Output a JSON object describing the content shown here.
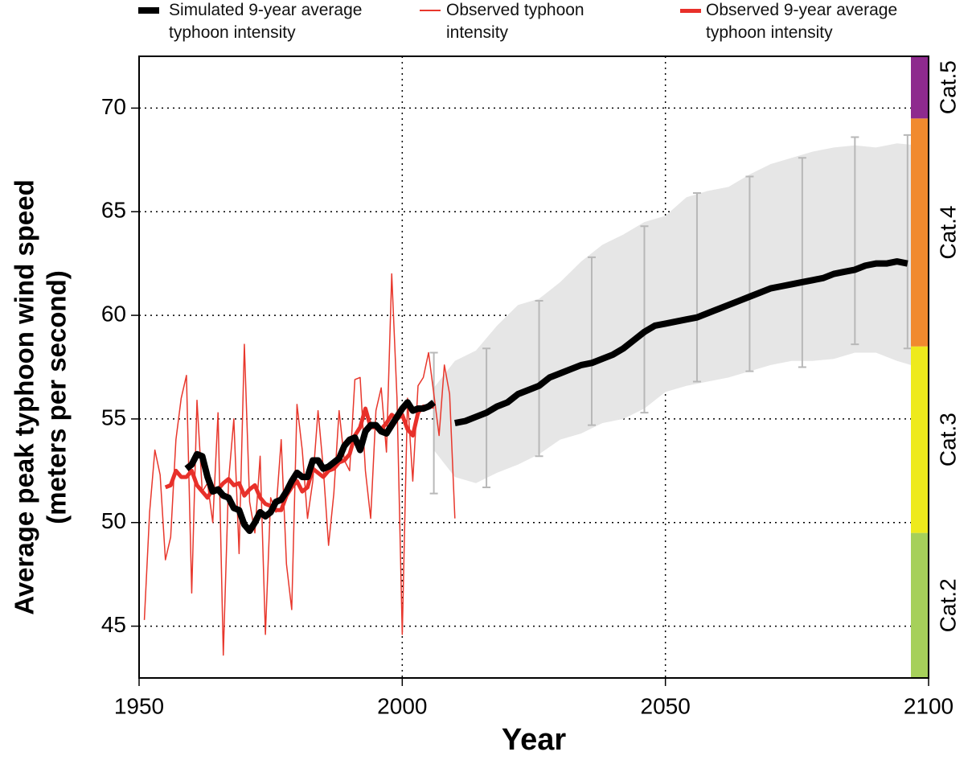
{
  "chart_data": {
    "type": "line",
    "x_label": "Year",
    "y_label": [
      "Average peak  typhoon wind speed",
      "(meters per second)"
    ],
    "xlim": [
      1950,
      2100
    ],
    "xticks": [
      1950,
      2000,
      2050,
      2100
    ],
    "ylim": [
      42.5,
      72.5
    ],
    "yticks": [
      45,
      50,
      55,
      60,
      65,
      70
    ],
    "grid": true,
    "legend": "top",
    "series": [
      {
        "name": "Simulated 9-year average typhoon intensity",
        "color": "#000000",
        "width": 8,
        "x": [
          1959,
          1960,
          1961,
          1962,
          1963,
          1964,
          1965,
          1966,
          1967,
          1968,
          1969,
          1970,
          1971,
          1972,
          1973,
          1974,
          1975,
          1976,
          1977,
          1978,
          1979,
          1980,
          1981,
          1982,
          1983,
          1984,
          1985,
          1986,
          1987,
          1988,
          1989,
          1990,
          1991,
          1992,
          1993,
          1994,
          1995,
          1996,
          1997,
          1998,
          1999,
          2000,
          2001,
          2002,
          2003,
          2004,
          2005,
          2006,
          2008,
          2010,
          2012,
          2014,
          2016,
          2018,
          2020,
          2022,
          2024,
          2026,
          2028,
          2030,
          2032,
          2034,
          2036,
          2038,
          2040,
          2042,
          2044,
          2046,
          2048,
          2050,
          2052,
          2054,
          2056,
          2058,
          2060,
          2062,
          2064,
          2066,
          2068,
          2070,
          2072,
          2074,
          2076,
          2078,
          2080,
          2082,
          2084,
          2086,
          2088,
          2090,
          2092,
          2094,
          2096
        ],
        "values": [
          52.6,
          52.8,
          53.3,
          53.2,
          52.2,
          51.5,
          51.6,
          51.3,
          51.2,
          50.7,
          50.6,
          49.9,
          49.6,
          50.0,
          50.5,
          50.3,
          50.5,
          51.0,
          51.1,
          51.5,
          52.0,
          52.4,
          52.2,
          52.2,
          53.0,
          53.0,
          52.6,
          52.7,
          52.9,
          53.1,
          53.7,
          54.0,
          54.1,
          53.5,
          54.4,
          54.7,
          54.7,
          54.4,
          54.3,
          54.7,
          55.1,
          55.5,
          55.8,
          55.4,
          55.5,
          55.5,
          55.6,
          55.8,
          null,
          54.8,
          54.9,
          55.1,
          55.3,
          55.6,
          55.8,
          56.2,
          56.4,
          56.6,
          57.0,
          57.2,
          57.4,
          57.6,
          57.7,
          57.9,
          58.1,
          58.4,
          58.8,
          59.2,
          59.5,
          59.6,
          59.7,
          59.8,
          59.9,
          60.1,
          60.3,
          60.5,
          60.7,
          60.9,
          61.1,
          61.3,
          61.4,
          61.5,
          61.6,
          61.7,
          61.8,
          62.0,
          62.1,
          62.2,
          62.4,
          62.5,
          62.5,
          62.6,
          62.5
        ]
      },
      {
        "name": "Observed typhoon intensity",
        "color": "#e8372c",
        "width": 1.5,
        "x": [
          1951,
          1952,
          1953,
          1954,
          1955,
          1956,
          1957,
          1958,
          1959,
          1960,
          1961,
          1962,
          1963,
          1964,
          1965,
          1966,
          1967,
          1968,
          1969,
          1970,
          1971,
          1972,
          1973,
          1974,
          1975,
          1976,
          1977,
          1978,
          1979,
          1980,
          1981,
          1982,
          1983,
          1984,
          1985,
          1986,
          1987,
          1988,
          1989,
          1990,
          1991,
          1992,
          1993,
          1994,
          1995,
          1996,
          1997,
          1998,
          1999,
          2000,
          2001,
          2002,
          2003,
          2004,
          2005,
          2006,
          2007,
          2008,
          2009,
          2010
        ],
        "values": [
          45.3,
          50.5,
          53.5,
          52.3,
          48.2,
          49.3,
          54.0,
          56.0,
          57.1,
          46.6,
          55.9,
          51.5,
          51.9,
          50.0,
          55.3,
          43.6,
          52.0,
          55.0,
          48.5,
          58.6,
          51.0,
          49.5,
          53.2,
          44.6,
          51.2,
          50.5,
          54.0,
          48.0,
          45.8,
          55.7,
          53.5,
          50.2,
          52.0,
          55.4,
          52.6,
          48.9,
          51.4,
          55.4,
          53.0,
          52.5,
          56.9,
          57.0,
          52.5,
          50.2,
          55.4,
          56.5,
          53.4,
          62.0,
          56.0,
          44.6,
          56.0,
          52.0,
          56.6,
          57.0,
          58.2,
          56.2,
          54.2,
          57.6,
          56.2,
          50.2
        ]
      },
      {
        "name": "Observed 9-year average typhoon intensity",
        "color": "#e8302a",
        "width": 5,
        "x": [
          1955,
          1956,
          1957,
          1958,
          1959,
          1960,
          1961,
          1962,
          1963,
          1964,
          1965,
          1966,
          1967,
          1968,
          1969,
          1970,
          1971,
          1972,
          1973,
          1974,
          1975,
          1976,
          1977,
          1978,
          1979,
          1980,
          1981,
          1982,
          1983,
          1984,
          1985,
          1986,
          1987,
          1988,
          1989,
          1990,
          1991,
          1992,
          1993,
          1994,
          1995,
          1996,
          1997,
          1998,
          1999,
          2000,
          2001,
          2002,
          2003,
          2004,
          2005,
          2006
        ],
        "values": [
          51.7,
          51.8,
          52.5,
          52.2,
          52.2,
          52.5,
          51.8,
          51.5,
          51.2,
          51.6,
          51.6,
          51.9,
          52.1,
          51.8,
          51.9,
          51.3,
          51.6,
          51.8,
          51.2,
          50.9,
          50.8,
          50.6,
          50.6,
          51.3,
          51.7,
          52.0,
          51.5,
          51.7,
          52.6,
          52.4,
          52.2,
          52.5,
          52.6,
          52.9,
          53.0,
          53.3,
          54.2,
          54.6,
          55.5,
          54.6,
          54.6,
          54.5,
          54.8,
          55.2,
          55.0,
          55.2,
          54.5,
          54.2,
          55.3,
          55.6,
          55.6,
          55.6
        ]
      }
    ],
    "band": {
      "color": "#e6e6e6",
      "x": [
        2006,
        2010,
        2014,
        2018,
        2022,
        2026,
        2030,
        2034,
        2038,
        2042,
        2046,
        2050,
        2054,
        2058,
        2062,
        2066,
        2070,
        2074,
        2078,
        2082,
        2086,
        2090,
        2094,
        2098
      ],
      "lower": [
        53.5,
        52.2,
        51.9,
        52.4,
        52.8,
        53.3,
        54.0,
        54.3,
        54.8,
        55.0,
        55.5,
        56.3,
        56.6,
        56.8,
        57.0,
        57.3,
        57.6,
        57.8,
        57.8,
        57.9,
        58.2,
        58.2,
        57.8,
        57.5
      ],
      "upper": [
        56.5,
        57.8,
        58.3,
        59.5,
        60.5,
        60.8,
        61.6,
        62.6,
        63.4,
        63.9,
        64.5,
        64.8,
        65.7,
        66.0,
        66.2,
        66.8,
        67.3,
        67.6,
        67.9,
        68.1,
        68.2,
        68.1,
        68.3,
        68.2
      ]
    },
    "error_bars": {
      "color": "#b8b8b8",
      "x": [
        2006,
        2016,
        2026,
        2036,
        2046,
        2056,
        2066,
        2076,
        2086,
        2096
      ],
      "low": [
        51.4,
        51.7,
        53.2,
        54.7,
        55.3,
        56.8,
        57.3,
        57.5,
        58.6,
        58.4
      ],
      "high": [
        58.2,
        58.4,
        60.7,
        62.8,
        64.3,
        65.9,
        66.7,
        67.6,
        68.6,
        68.7
      ]
    },
    "category_bands": [
      {
        "label": "Cat.2",
        "range": [
          42.5,
          49.5
        ],
        "color": "#a6d05a"
      },
      {
        "label": "Cat.3",
        "range": [
          49.5,
          58.5
        ],
        "color": "#eeea1c"
      },
      {
        "label": "Cat.4",
        "range": [
          58.5,
          69.5
        ],
        "color": "#f18a2e"
      },
      {
        "label": "Cat.5",
        "range": [
          69.5,
          72.5
        ],
        "color": "#8e2a8e"
      }
    ]
  }
}
